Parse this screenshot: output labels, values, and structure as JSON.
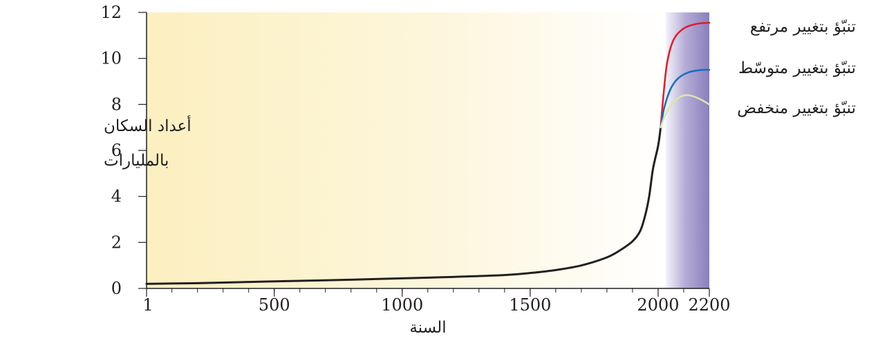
{
  "chart_data": {
    "type": "line",
    "xlabel": "السنة",
    "ylabel": [
      "أعداد السكان",
      "بالمليارات"
    ],
    "xlim": [
      1,
      2200
    ],
    "ylim": [
      0,
      12
    ],
    "x_ticks": [
      "1",
      "500",
      "1000",
      "1500",
      "2000",
      "2200"
    ],
    "x_tick_values": [
      1,
      500,
      1000,
      1500,
      2000,
      2200
    ],
    "y_ticks": [
      "0",
      "2",
      "4",
      "6",
      "8",
      "10",
      "12"
    ],
    "y_tick_values": [
      0,
      2,
      4,
      6,
      8,
      10,
      12
    ],
    "projection_start": 2030,
    "background": {
      "past_color": "#fdf1c2",
      "projection_colors": [
        "#eceaf4",
        "#8f84c0"
      ]
    },
    "series": [
      {
        "key": "historical",
        "color": "#231f20",
        "points": [
          [
            1,
            0.2
          ],
          [
            200,
            0.23
          ],
          [
            400,
            0.28
          ],
          [
            600,
            0.33
          ],
          [
            800,
            0.38
          ],
          [
            1000,
            0.44
          ],
          [
            1200,
            0.5
          ],
          [
            1400,
            0.58
          ],
          [
            1500,
            0.67
          ],
          [
            1600,
            0.8
          ],
          [
            1700,
            1.0
          ],
          [
            1800,
            1.35
          ],
          [
            1850,
            1.65
          ],
          [
            1900,
            2.05
          ],
          [
            1930,
            2.5
          ],
          [
            1950,
            3.2
          ],
          [
            1965,
            4.0
          ],
          [
            1980,
            5.2
          ],
          [
            2000,
            6.2
          ],
          [
            2010,
            7.0
          ]
        ]
      },
      {
        "name": "تنبّؤ بتغيير مرتفع",
        "key": "high",
        "color": "#e01e2d",
        "points": [
          [
            2010,
            7.0
          ],
          [
            2020,
            8.3
          ],
          [
            2035,
            9.8
          ],
          [
            2060,
            10.8
          ],
          [
            2100,
            11.3
          ],
          [
            2150,
            11.5
          ],
          [
            2200,
            11.55
          ]
        ]
      },
      {
        "name": "تنبّؤ بتغيير متوسّط",
        "key": "medium",
        "color": "#1c6fc0",
        "points": [
          [
            2010,
            7.0
          ],
          [
            2025,
            7.9
          ],
          [
            2050,
            8.7
          ],
          [
            2080,
            9.15
          ],
          [
            2120,
            9.4
          ],
          [
            2170,
            9.5
          ],
          [
            2200,
            9.5
          ]
        ]
      },
      {
        "name": "تنبّؤ بتغيير منخفض",
        "key": "low",
        "color": "#d9e7a6",
        "points": [
          [
            2010,
            7.0
          ],
          [
            2030,
            7.6
          ],
          [
            2060,
            8.1
          ],
          [
            2090,
            8.35
          ],
          [
            2120,
            8.4
          ],
          [
            2160,
            8.25
          ],
          [
            2200,
            8.0
          ]
        ]
      }
    ]
  }
}
